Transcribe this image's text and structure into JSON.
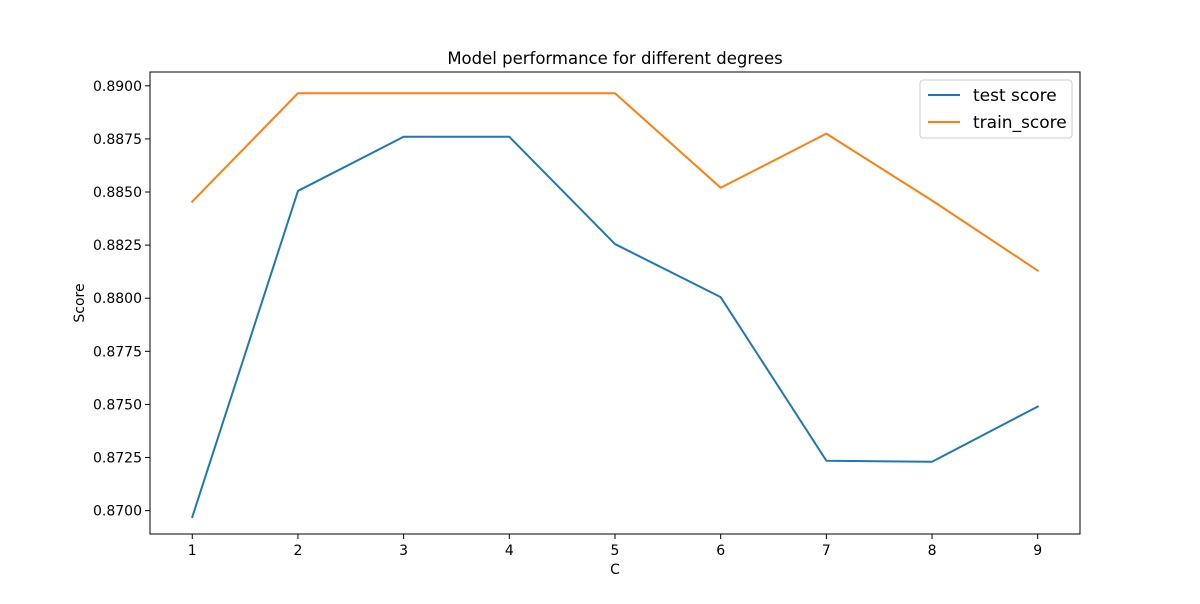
{
  "chart_data": {
    "type": "line",
    "title": "Model performance for different degrees",
    "xlabel": "C",
    "ylabel": "Score",
    "x": [
      1,
      2,
      3,
      4,
      5,
      6,
      7,
      8,
      9
    ],
    "x_ticks": [
      "1",
      "2",
      "3",
      "4",
      "5",
      "6",
      "7",
      "8",
      "9"
    ],
    "y_ticks": [
      0.87,
      0.8725,
      0.875,
      0.8775,
      0.88,
      0.8825,
      0.885,
      0.8875,
      0.89
    ],
    "y_tick_labels": [
      "0.8700",
      "0.8725",
      "0.8750",
      "0.8775",
      "0.8800",
      "0.8825",
      "0.8850",
      "0.8875",
      "0.8900"
    ],
    "xlim": [
      0.6,
      9.4
    ],
    "ylim": [
      0.8689,
      0.89065
    ],
    "grid": false,
    "legend_position": "upper right",
    "series": [
      {
        "name": "test score",
        "color": "#1f77b4",
        "values": [
          0.8697,
          0.88505,
          0.8876,
          0.8876,
          0.88255,
          0.88005,
          0.87235,
          0.8723,
          0.8749
        ]
      },
      {
        "name": "train_score",
        "color": "#ff7f0e",
        "values": [
          0.88455,
          0.88965,
          0.88965,
          0.88965,
          0.88965,
          0.8852,
          0.88775,
          0.8846,
          0.8813
        ]
      }
    ]
  }
}
